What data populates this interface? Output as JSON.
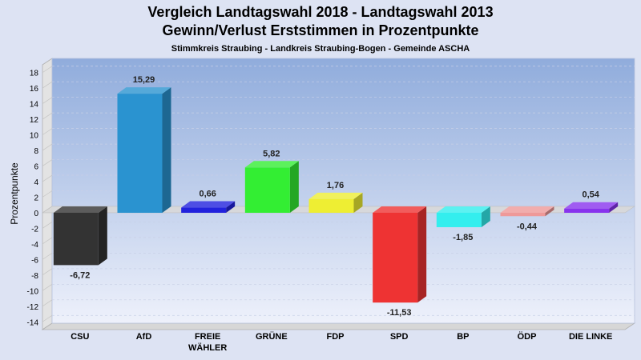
{
  "chart_data": {
    "type": "bar",
    "title": "Vergleich Landtagswahl 2018 - Landtagswahl 2013",
    "subtitle": "Gewinn/Verlust Erststimmen in Prozentpunkte",
    "subtitle2": "Stimmkreis Straubing - Landkreis Straubing-Bogen - Gemeinde ASCHA",
    "ylabel": "Prozentpunkte",
    "xlabel": "",
    "ylim": [
      -15,
      19
    ],
    "yticks": [
      18,
      16,
      14,
      12,
      10,
      8,
      6,
      4,
      2,
      0,
      -2,
      -4,
      -6,
      -8,
      -10,
      -12,
      -14
    ],
    "grid": true,
    "categories": [
      "CSU",
      "AfD",
      "FREIE WÄHLER",
      "GRÜNE",
      "FDP",
      "SPD",
      "BP",
      "ÖDP",
      "DIE LINKE"
    ],
    "category_lines": [
      [
        "CSU"
      ],
      [
        "AfD"
      ],
      [
        "FREIE",
        "WÄHLER"
      ],
      [
        "GRÜNE"
      ],
      [
        "FDP"
      ],
      [
        "SPD"
      ],
      [
        "BP"
      ],
      [
        "ÖDP"
      ],
      [
        "DIE LINKE"
      ]
    ],
    "values": [
      -6.72,
      15.29,
      0.66,
      5.82,
      1.76,
      -11.53,
      -1.85,
      -0.44,
      0.54
    ],
    "value_labels": [
      "-6,72",
      "15,29",
      "0,66",
      "5,82",
      "1,76",
      "-11,53",
      "-1,85",
      "-0,44",
      "0,54"
    ],
    "colors": [
      "#333333",
      "#2a93d0",
      "#2222dd",
      "#33ee33",
      "#eeee33",
      "#ee3333",
      "#33eeee",
      "#ee9999",
      "#8833ee"
    ]
  }
}
